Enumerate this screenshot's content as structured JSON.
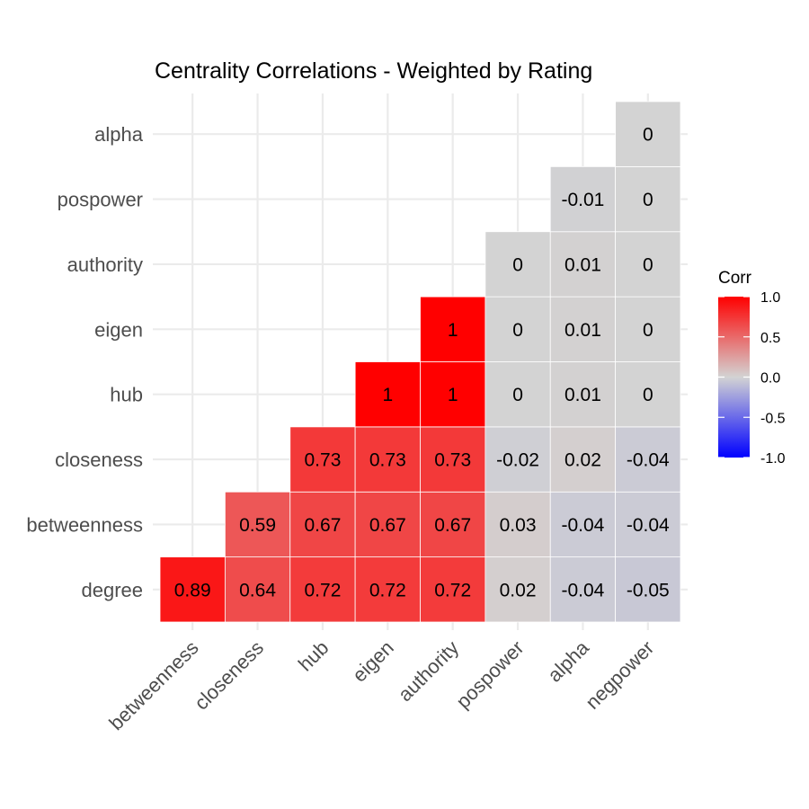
{
  "chart_data": {
    "type": "heatmap",
    "title": "Centrality Correlations - Weighted by Rating",
    "x_categories": [
      "betweenness",
      "closeness",
      "hub",
      "eigen",
      "authority",
      "pospower",
      "alpha",
      "negpower"
    ],
    "y_categories": [
      "degree",
      "betweenness",
      "closeness",
      "hub",
      "eigen",
      "authority",
      "pospower",
      "alpha"
    ],
    "cells": [
      {
        "y": "degree",
        "x": "betweenness",
        "value": 0.89,
        "label": "0.89"
      },
      {
        "y": "degree",
        "x": "closeness",
        "value": 0.64,
        "label": "0.64"
      },
      {
        "y": "degree",
        "x": "hub",
        "value": 0.72,
        "label": "0.72"
      },
      {
        "y": "degree",
        "x": "eigen",
        "value": 0.72,
        "label": "0.72"
      },
      {
        "y": "degree",
        "x": "authority",
        "value": 0.72,
        "label": "0.72"
      },
      {
        "y": "degree",
        "x": "pospower",
        "value": 0.02,
        "label": "0.02"
      },
      {
        "y": "degree",
        "x": "alpha",
        "value": -0.04,
        "label": "-0.04"
      },
      {
        "y": "degree",
        "x": "negpower",
        "value": -0.05,
        "label": "-0.05"
      },
      {
        "y": "betweenness",
        "x": "closeness",
        "value": 0.59,
        "label": "0.59"
      },
      {
        "y": "betweenness",
        "x": "hub",
        "value": 0.67,
        "label": "0.67"
      },
      {
        "y": "betweenness",
        "x": "eigen",
        "value": 0.67,
        "label": "0.67"
      },
      {
        "y": "betweenness",
        "x": "authority",
        "value": 0.67,
        "label": "0.67"
      },
      {
        "y": "betweenness",
        "x": "pospower",
        "value": 0.03,
        "label": "0.03"
      },
      {
        "y": "betweenness",
        "x": "alpha",
        "value": -0.04,
        "label": "-0.04"
      },
      {
        "y": "betweenness",
        "x": "negpower",
        "value": -0.04,
        "label": "-0.04"
      },
      {
        "y": "closeness",
        "x": "hub",
        "value": 0.73,
        "label": "0.73"
      },
      {
        "y": "closeness",
        "x": "eigen",
        "value": 0.73,
        "label": "0.73"
      },
      {
        "y": "closeness",
        "x": "authority",
        "value": 0.73,
        "label": "0.73"
      },
      {
        "y": "closeness",
        "x": "pospower",
        "value": -0.02,
        "label": "-0.02"
      },
      {
        "y": "closeness",
        "x": "alpha",
        "value": 0.02,
        "label": "0.02"
      },
      {
        "y": "closeness",
        "x": "negpower",
        "value": -0.04,
        "label": "-0.04"
      },
      {
        "y": "hub",
        "x": "eigen",
        "value": 1,
        "label": "1"
      },
      {
        "y": "hub",
        "x": "authority",
        "value": 1,
        "label": "1"
      },
      {
        "y": "hub",
        "x": "pospower",
        "value": 0,
        "label": "0"
      },
      {
        "y": "hub",
        "x": "alpha",
        "value": 0.01,
        "label": "0.01"
      },
      {
        "y": "hub",
        "x": "negpower",
        "value": 0,
        "label": "0"
      },
      {
        "y": "eigen",
        "x": "authority",
        "value": 1,
        "label": "1"
      },
      {
        "y": "eigen",
        "x": "pospower",
        "value": 0,
        "label": "0"
      },
      {
        "y": "eigen",
        "x": "alpha",
        "value": 0.01,
        "label": "0.01"
      },
      {
        "y": "eigen",
        "x": "negpower",
        "value": 0,
        "label": "0"
      },
      {
        "y": "authority",
        "x": "pospower",
        "value": 0,
        "label": "0"
      },
      {
        "y": "authority",
        "x": "alpha",
        "value": 0.01,
        "label": "0.01"
      },
      {
        "y": "authority",
        "x": "negpower",
        "value": 0,
        "label": "0"
      },
      {
        "y": "pospower",
        "x": "alpha",
        "value": -0.01,
        "label": "-0.01"
      },
      {
        "y": "pospower",
        "x": "negpower",
        "value": 0,
        "label": "0"
      },
      {
        "y": "alpha",
        "x": "negpower",
        "value": 0,
        "label": "0"
      }
    ],
    "legend": {
      "title": "Corr",
      "ticks": [
        "1.0",
        "0.5",
        "0.0",
        "-0.5",
        "-1.0"
      ],
      "tick_values": [
        1.0,
        0.5,
        0.0,
        -0.5,
        -1.0
      ],
      "range": [
        -1,
        1
      ],
      "placement": "right"
    },
    "colors": {
      "low": "#0000ff",
      "mid": "#d3d3d3",
      "high": "#ff0000"
    },
    "grid": true
  }
}
